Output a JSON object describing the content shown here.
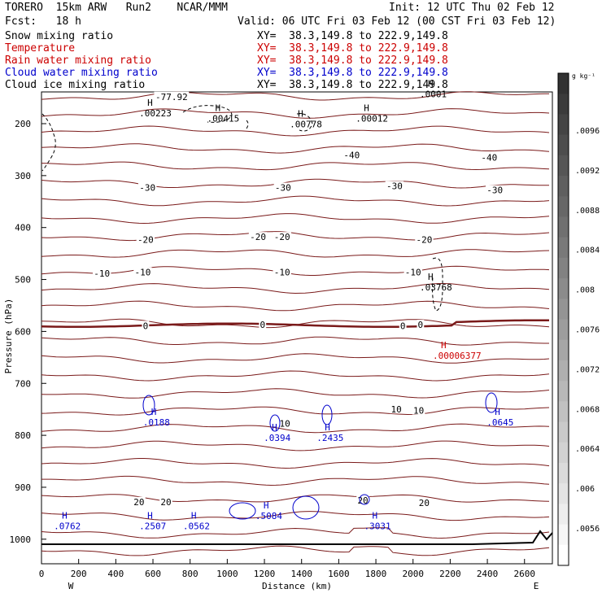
{
  "header": {
    "model": "TORERO  15km ARW   Run2    NCAR/MMM",
    "fcst": "Fcst:   18 h",
    "init": "Init: 12 UTC Thu 02 Feb 12",
    "valid": "Valid: 06 UTC Fri 03 Feb 12 (00 CST Fri 03 Feb 12)",
    "fields": [
      {
        "name": "Snow mixing ratio",
        "xy": "XY=  38.3,149.8 to 222.9,149.8",
        "color": "#000000"
      },
      {
        "name": "Temperature",
        "xy": "XY=  38.3,149.8 to 222.9,149.8",
        "color": "#cc0000"
      },
      {
        "name": "Rain water mixing ratio",
        "xy": "XY=  38.3,149.8 to 222.9,149.8",
        "color": "#cc0000"
      },
      {
        "name": "Cloud water mixing ratio",
        "xy": "XY=  38.3,149.8 to 222.9,149.8",
        "color": "#0000cc"
      },
      {
        "name": "Cloud ice mixing ratio",
        "xy": "XY=  38.3,149.8 to 222.9,149.8",
        "color": "#000000"
      }
    ]
  },
  "chart_data": {
    "type": "contour",
    "xlabel": "Distance (km)",
    "ylabel": "Pressure (hPa)",
    "xlim": [
      0,
      2750
    ],
    "ylim": [
      1050,
      100
    ],
    "x_ticks": [
      0,
      200,
      400,
      600,
      800,
      1000,
      1200,
      1400,
      1600,
      1800,
      2000,
      2200,
      2400,
      2600
    ],
    "y_ticks": [
      200,
      300,
      400,
      500,
      600,
      700,
      800,
      900,
      1000
    ],
    "endpoints": {
      "left": "W",
      "right": "E"
    },
    "colorbar": {
      "unit": "g kg⁻¹",
      "ticks": [
        ".0096",
        ".0092",
        ".0088",
        ".0084",
        ".008",
        ".0076",
        ".0072",
        ".0068",
        ".0064",
        ".006",
        ".0056"
      ]
    },
    "temperature_labels": [
      {
        "x": 700,
        "p": 148,
        "text": "-77.92"
      },
      {
        "x": 1670,
        "p": 260,
        "text": "-40"
      },
      {
        "x": 2410,
        "p": 265,
        "text": "-40"
      },
      {
        "x": 570,
        "p": 323,
        "text": "-30"
      },
      {
        "x": 1300,
        "p": 323,
        "text": "-30"
      },
      {
        "x": 1900,
        "p": 320,
        "text": "-30"
      },
      {
        "x": 2440,
        "p": 328,
        "text": "-30"
      },
      {
        "x": 560,
        "p": 423,
        "text": "-20"
      },
      {
        "x": 1165,
        "p": 418,
        "text": "-20"
      },
      {
        "x": 1295,
        "p": 418,
        "text": "-20"
      },
      {
        "x": 2060,
        "p": 423,
        "text": "-20"
      },
      {
        "x": 325,
        "p": 488,
        "text": "-10"
      },
      {
        "x": 545,
        "p": 486,
        "text": "-10"
      },
      {
        "x": 1295,
        "p": 486,
        "text": "-10"
      },
      {
        "x": 2000,
        "p": 486,
        "text": "-10"
      },
      {
        "x": 560,
        "p": 589,
        "text": "0"
      },
      {
        "x": 1190,
        "p": 587,
        "text": "0"
      },
      {
        "x": 1945,
        "p": 589,
        "text": "0"
      },
      {
        "x": 2040,
        "p": 587,
        "text": "0"
      },
      {
        "x": 1910,
        "p": 750,
        "text": "10"
      },
      {
        "x": 2030,
        "p": 752,
        "text": "10"
      },
      {
        "x": 1310,
        "p": 777,
        "text": "10"
      },
      {
        "x": 525,
        "p": 928,
        "text": "20"
      },
      {
        "x": 670,
        "p": 928,
        "text": "20"
      },
      {
        "x": 1730,
        "p": 925,
        "text": "20"
      },
      {
        "x": 2060,
        "p": 930,
        "text": "20"
      }
    ],
    "snow_max": [
      {
        "x": 570,
        "p": 175,
        "text": ".00223"
      },
      {
        "x": 935,
        "p": 185,
        "text": ".00415"
      },
      {
        "x": 1380,
        "p": 196,
        "text": ".00778"
      },
      {
        "x": 1735,
        "p": 185,
        "text": ".00012"
      }
    ],
    "ice_max": [
      {
        "x": 2080,
        "p": 510,
        "text": ".03768"
      },
      {
        "x": 2080,
        "p": 138,
        "text": ".0001"
      }
    ],
    "rain_max": [
      {
        "x": 2150,
        "p": 642,
        "text": ".00006377"
      }
    ],
    "cloud_water_max": [
      {
        "x": 590,
        "p": 770,
        "text": ".0188"
      },
      {
        "x": 1240,
        "p": 800,
        "text": ".0394"
      },
      {
        "x": 1525,
        "p": 800,
        "text": ".2435"
      },
      {
        "x": 2440,
        "p": 770,
        "text": ".0645"
      },
      {
        "x": 110,
        "p": 970,
        "text": ".0762"
      },
      {
        "x": 570,
        "p": 970,
        "text": ".2507"
      },
      {
        "x": 805,
        "p": 970,
        "text": ".0562"
      },
      {
        "x": 1195,
        "p": 950,
        "text": ".5084"
      },
      {
        "x": 1780,
        "p": 970,
        "text": ".3031"
      }
    ]
  }
}
